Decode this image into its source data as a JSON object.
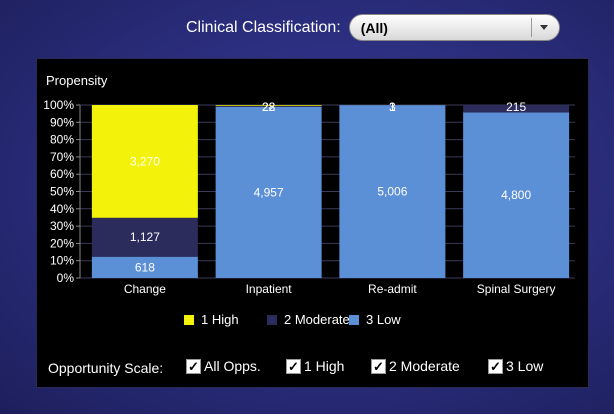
{
  "filter": {
    "label": "Clinical Classification:",
    "value": "(All)"
  },
  "chart_data": {
    "type": "bar",
    "stacked": "100%",
    "ylabel": "Propensity",
    "yticks": [
      "0%",
      "10%",
      "20%",
      "30%",
      "40%",
      "50%",
      "60%",
      "70%",
      "80%",
      "90%",
      "100%"
    ],
    "categories": [
      "Change",
      "Inpatient",
      "Re-admit",
      "Spinal Surgery"
    ],
    "series": [
      {
        "name": "3 Low",
        "color": "#5b8fd6",
        "values": [
          618,
          4957,
          5006,
          4800
        ],
        "labels": [
          "618",
          "4,957",
          "5,006",
          "4,800"
        ]
      },
      {
        "name": "2 Moderate",
        "color": "#2b2b5c",
        "values": [
          1127,
          28,
          3,
          215
        ],
        "labels": [
          "1,127",
          "28",
          "3",
          "215"
        ]
      },
      {
        "name": "1 High",
        "color": "#f2f20a",
        "values": [
          3270,
          22,
          1,
          0
        ],
        "labels": [
          "3,270",
          "22",
          "1",
          ""
        ]
      }
    ],
    "grid": true,
    "legend_position": "bottom"
  },
  "legend": {
    "items": [
      {
        "label": "1 High",
        "color": "#f2f20a"
      },
      {
        "label": "2 Moderate",
        "color": "#2b2b5c"
      },
      {
        "label": "3 Low",
        "color": "#5b8fd6"
      }
    ]
  },
  "opportunity": {
    "label": "Opportunity Scale:",
    "options": [
      {
        "label": "All Opps.",
        "checked": true
      },
      {
        "label": "1 High",
        "checked": true
      },
      {
        "label": "2 Moderate",
        "checked": true
      },
      {
        "label": "3 Low",
        "checked": true
      }
    ]
  }
}
